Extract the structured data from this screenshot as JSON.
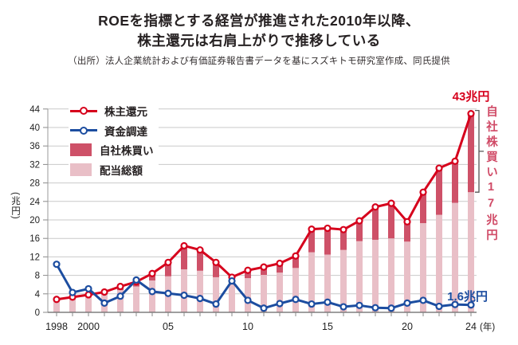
{
  "header": {
    "title_line1": "ROEを指標とする経営が推進された2010年以降、",
    "title_line2": "株主還元は右肩上がりで推移している",
    "source": "（出所）法人企業統計および有価証券報告書データを基にスズキトモ研究室作成、同氏提供"
  },
  "axis": {
    "unit_label": "(兆円)",
    "year_suffix": "(年)"
  },
  "chart_data": {
    "type": "line+stacked-bar",
    "years": [
      1998,
      1999,
      2000,
      2001,
      2002,
      2003,
      2004,
      2005,
      2006,
      2007,
      2008,
      2009,
      2010,
      2011,
      2012,
      2013,
      2014,
      2015,
      2016,
      2017,
      2018,
      2019,
      2020,
      2021,
      2022,
      2023,
      2024
    ],
    "ylim": [
      0,
      44
    ],
    "y_ticks": [
      0,
      4,
      8,
      12,
      16,
      20,
      24,
      28,
      32,
      36,
      40,
      44
    ],
    "grid": true,
    "legend_position": "top-left",
    "x_tick_labels": [
      {
        "year": 1998,
        "label": "1998"
      },
      {
        "year": 2000,
        "label": "2000"
      },
      {
        "year": 2005,
        "label": "05"
      },
      {
        "year": 2010,
        "label": "10"
      },
      {
        "year": 2015,
        "label": "15"
      },
      {
        "year": 2020,
        "label": "20"
      },
      {
        "year": 2024,
        "label": "24",
        "suffix": "(年)"
      }
    ],
    "series": [
      {
        "name": "株主還元",
        "kind": "line",
        "color": "#d6001c",
        "values": [
          2.8,
          3.3,
          3.8,
          4.4,
          5.6,
          6.6,
          8.4,
          10.8,
          14.4,
          13.5,
          10.8,
          7.6,
          9.1,
          9.8,
          10.6,
          12.2,
          18.0,
          18.2,
          17.9,
          19.8,
          22.8,
          23.6,
          19.6,
          26.0,
          31.2,
          32.7,
          43.0
        ]
      },
      {
        "name": "資金調達",
        "kind": "line",
        "color": "#1c4da0",
        "values": [
          10.4,
          4.3,
          5.1,
          2.0,
          3.5,
          7.0,
          4.5,
          4.1,
          3.7,
          3.0,
          1.8,
          6.8,
          2.6,
          0.9,
          1.9,
          2.8,
          1.8,
          2.2,
          1.2,
          1.5,
          1.0,
          0.9,
          2.0,
          2.6,
          1.3,
          1.7,
          1.6
        ]
      },
      {
        "name": "自社株買い",
        "kind": "bar",
        "stack": "top",
        "color": "#ce5168",
        "values": [
          0.1,
          0.2,
          0.3,
          0.5,
          0.8,
          1.0,
          1.5,
          3.0,
          5.1,
          4.5,
          3.2,
          0.6,
          1.7,
          1.7,
          2.0,
          2.6,
          5.0,
          5.7,
          4.4,
          4.4,
          7.1,
          7.6,
          4.3,
          6.7,
          10.1,
          9.0,
          17.0
        ]
      },
      {
        "name": "配当総額",
        "kind": "bar",
        "stack": "bottom",
        "color": "#e9bfc7",
        "values": [
          2.7,
          3.1,
          3.5,
          3.9,
          4.8,
          5.6,
          6.9,
          7.8,
          9.3,
          9.0,
          7.6,
          7.0,
          7.4,
          8.1,
          8.6,
          9.6,
          13.0,
          12.5,
          13.5,
          15.4,
          15.7,
          16.0,
          15.3,
          19.3,
          21.1,
          23.7,
          26.0
        ]
      }
    ],
    "annotations": {
      "peak": {
        "year": 2024,
        "value": 43,
        "label": "43兆円",
        "color": "#d6001c"
      },
      "buyback_2024": {
        "value": 17,
        "label": "自社株買い17兆円",
        "color": "#d04a66"
      },
      "fundraising_2024": {
        "value": 1.6,
        "label": "1.6兆円",
        "color": "#1c4da0"
      }
    }
  }
}
